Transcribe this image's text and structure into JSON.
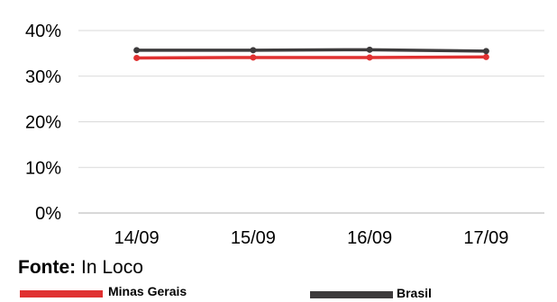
{
  "chart_data": {
    "type": "line",
    "categories": [
      "14/09",
      "15/09",
      "16/09",
      "17/09"
    ],
    "ylim": [
      0,
      40
    ],
    "yticks": [
      "0%",
      "10%",
      "20%",
      "30%",
      "40%"
    ],
    "ytick_values": [
      0,
      10,
      20,
      30,
      40
    ],
    "grid": true,
    "legend_position": "bottom",
    "series": [
      {
        "name": "Minas Gerais",
        "values": [
          34.0,
          34.1,
          34.1,
          34.2
        ],
        "color": "#e03131"
      },
      {
        "name": "Brasil",
        "values": [
          35.7,
          35.7,
          35.8,
          35.5
        ],
        "color": "#3d3b3c"
      }
    ]
  },
  "source": {
    "label": "Fonte:",
    "value": "In Loco"
  }
}
